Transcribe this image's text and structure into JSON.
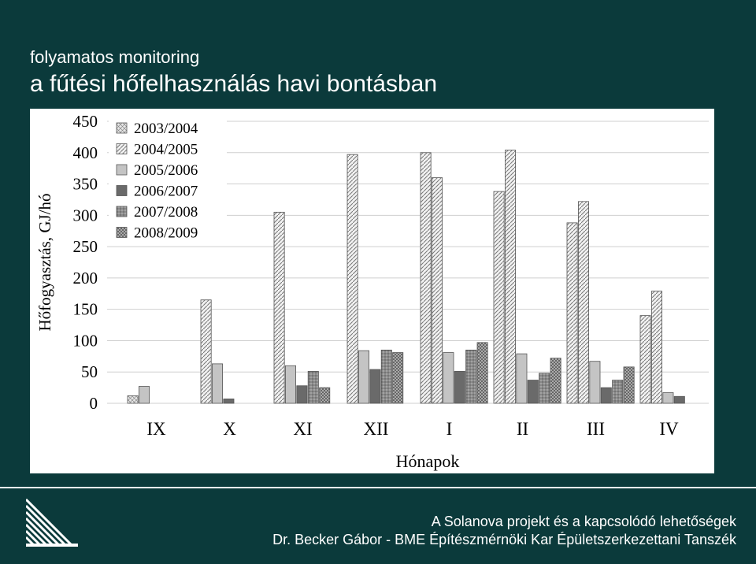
{
  "slide": {
    "title_line1": "folyamatos monitoring",
    "title_line2": "a fűtési hőfelhasználás havi bontásban"
  },
  "footer": {
    "line1": "A Solanova projekt és a kapcsolódó lehetőségek",
    "line2": "Dr. Becker Gábor - BME Építészmérnöki Kar Épületszerkezettani Tanszék"
  },
  "colors": {
    "background": "#0b3a3b",
    "chart_background": "#ffffff",
    "text": "#ffffff"
  },
  "chart_data": {
    "type": "bar",
    "title": "",
    "xlabel": "Hónapok",
    "ylabel": "Hőfogyasztás, GJ/hó",
    "ylim": [
      0,
      450
    ],
    "yticks": [
      0,
      50,
      100,
      150,
      200,
      250,
      300,
      350,
      400,
      450
    ],
    "grid": "horizontal",
    "legend_position": "top-left",
    "categories": [
      "IX",
      "X",
      "XI",
      "XII",
      "I",
      "II",
      "III",
      "IV"
    ],
    "series": [
      {
        "name": "2003/2004",
        "style": "crosshatch-light",
        "values": [
          12,
          null,
          null,
          null,
          null,
          null,
          null,
          null
        ]
      },
      {
        "name": "2004/2005",
        "style": "diagonal-hatch",
        "values": [
          null,
          165,
          305,
          397,
          400,
          338,
          288,
          140
        ]
      },
      {
        "name": "2005/2006",
        "style": "light-gray",
        "values": [
          27,
          63,
          60,
          84,
          81,
          79,
          67,
          17
        ]
      },
      {
        "name": "2006/2007",
        "style": "dark-gray",
        "values": [
          null,
          7,
          28,
          54,
          51,
          37,
          25,
          11
        ]
      },
      {
        "name": "2007/2008",
        "style": "dotted-gray",
        "values": [
          null,
          null,
          51,
          85,
          85,
          48,
          37,
          null
        ]
      },
      {
        "name": "2008/2009",
        "style": "crosshatch-dark",
        "values": [
          null,
          null,
          25,
          81,
          97,
          72,
          58,
          null
        ]
      }
    ],
    "extra_bars": [
      {
        "category": "I",
        "label": "2004/2005 (2)",
        "value": 360
      },
      {
        "category": "II",
        "label": "2004/2005 (2)",
        "value": 404
      },
      {
        "category": "III",
        "label": "2004/2005 (2)",
        "value": 322
      },
      {
        "category": "IV",
        "label": "2004/2005 (2)",
        "value": 179
      }
    ]
  }
}
